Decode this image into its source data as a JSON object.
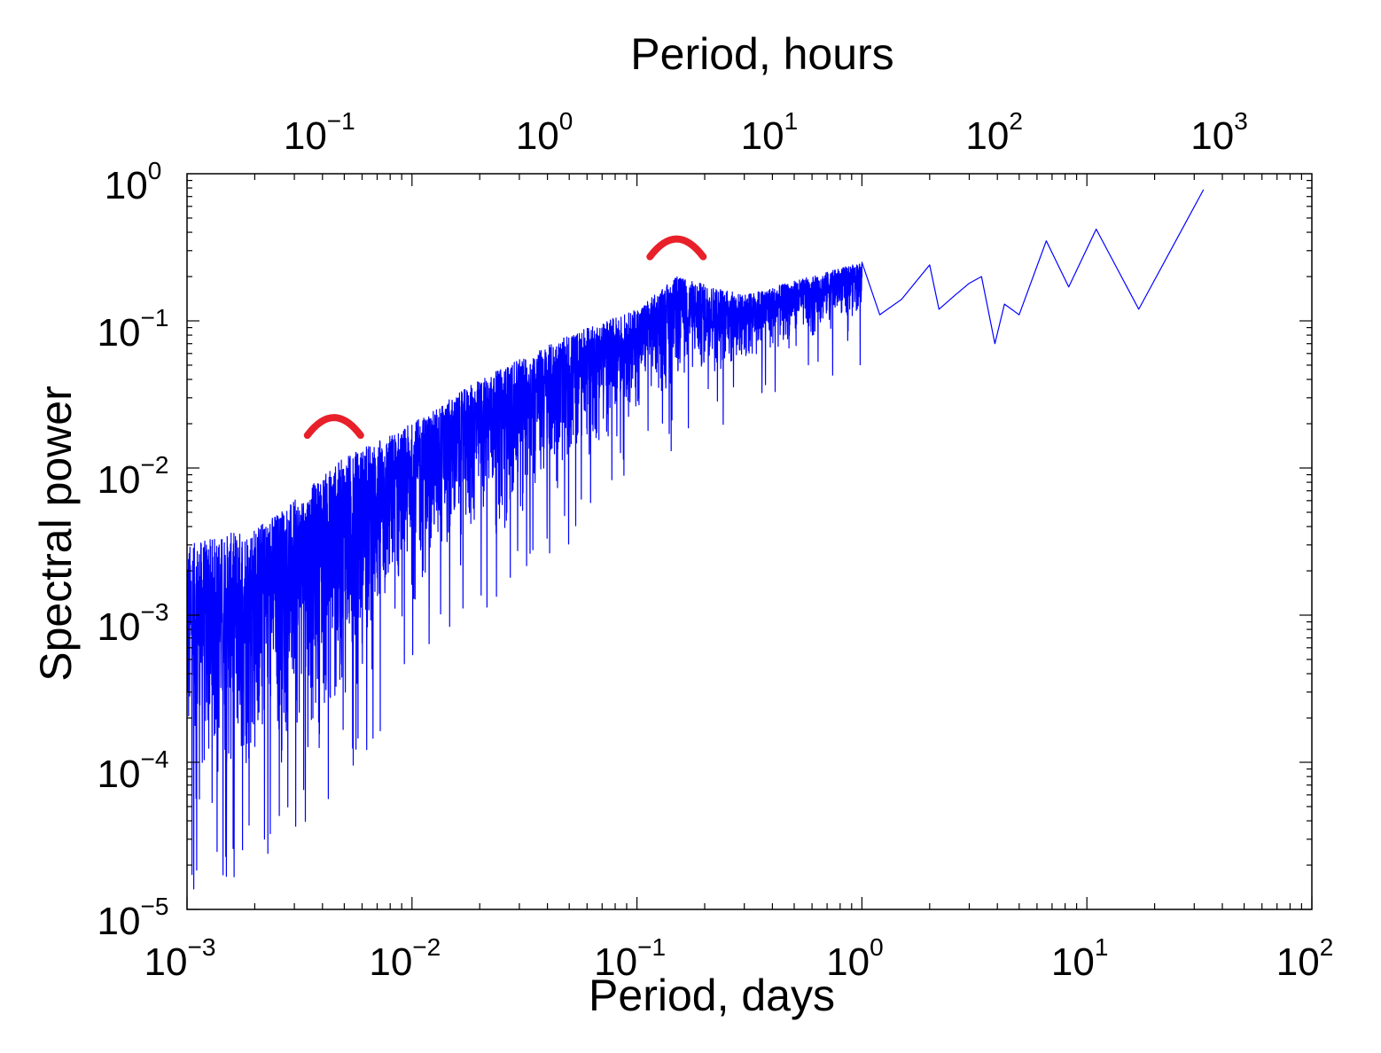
{
  "chart_data": {
    "type": "line",
    "title": "",
    "xlabel": "Period, days",
    "x2label": "Period, hours",
    "ylabel": "Spectral power",
    "xscale": "log",
    "yscale": "log",
    "xlim": [
      0.001,
      100
    ],
    "ylim": [
      1e-05,
      1
    ],
    "x2lim": [
      0.024,
      2400
    ],
    "grid": false,
    "colors": {
      "series": "#0000ff",
      "marker": "#e8202a",
      "axis": "#000000"
    },
    "x_ticks": [
      {
        "base": "10",
        "exp": "−3",
        "value": 0.001
      },
      {
        "base": "10",
        "exp": "−2",
        "value": 0.01
      },
      {
        "base": "10",
        "exp": "−1",
        "value": 0.1
      },
      {
        "base": "10",
        "exp": "0",
        "value": 1
      },
      {
        "base": "10",
        "exp": "1",
        "value": 10
      },
      {
        "base": "10",
        "exp": "2",
        "value": 100
      }
    ],
    "x2_ticks": [
      {
        "base": "10",
        "exp": "−1",
        "value": 0.1
      },
      {
        "base": "10",
        "exp": "0",
        "value": 1
      },
      {
        "base": "10",
        "exp": "1",
        "value": 10
      },
      {
        "base": "10",
        "exp": "2",
        "value": 100
      },
      {
        "base": "10",
        "exp": "3",
        "value": 1000
      }
    ],
    "y_ticks": [
      {
        "base": "10",
        "exp": "0",
        "value": 1
      },
      {
        "base": "10",
        "exp": "−1",
        "value": 0.1
      },
      {
        "base": "10",
        "exp": "−2",
        "value": 0.01
      },
      {
        "base": "10",
        "exp": "−3",
        "value": 0.001
      },
      {
        "base": "10",
        "exp": "−4",
        "value": 0.0001
      },
      {
        "base": "10",
        "exp": "−5",
        "value": 1e-05
      }
    ],
    "series": [
      {
        "name": "Spectral power",
        "envelope_upper": [
          [
            0.001,
            0.003
          ],
          [
            0.002,
            0.004
          ],
          [
            0.003,
            0.006
          ],
          [
            0.005,
            0.012
          ],
          [
            0.01,
            0.02
          ],
          [
            0.02,
            0.04
          ],
          [
            0.05,
            0.08
          ],
          [
            0.1,
            0.12
          ],
          [
            0.15,
            0.2
          ],
          [
            0.3,
            0.15
          ],
          [
            1.0,
            0.25
          ]
        ],
        "envelope_lower": [
          [
            0.001,
            2e-05
          ],
          [
            0.002,
            4e-05
          ],
          [
            0.003,
            6e-05
          ],
          [
            0.005,
            0.0001
          ],
          [
            0.01,
            0.0008
          ],
          [
            0.02,
            0.002
          ],
          [
            0.05,
            0.006
          ],
          [
            0.1,
            0.02
          ],
          [
            0.3,
            0.04
          ],
          [
            1.0,
            0.1
          ]
        ],
        "low_freq_points": [
          [
            1.0,
            0.25
          ],
          [
            1.2,
            0.11
          ],
          [
            1.5,
            0.14
          ],
          [
            2.0,
            0.24
          ],
          [
            2.2,
            0.12
          ],
          [
            2.6,
            0.15
          ],
          [
            3.0,
            0.18
          ],
          [
            3.4,
            0.2
          ],
          [
            3.9,
            0.07
          ],
          [
            4.3,
            0.13
          ],
          [
            5.0,
            0.11
          ],
          [
            6.6,
            0.35
          ],
          [
            8.3,
            0.17
          ],
          [
            11.0,
            0.42
          ],
          [
            17.0,
            0.12
          ],
          [
            33.0,
            0.78
          ]
        ]
      }
    ],
    "annotations": [
      {
        "type": "peak-marker",
        "x": 0.0045,
        "y": 0.022
      },
      {
        "type": "peak-marker",
        "x": 0.15,
        "y": 0.36
      }
    ]
  }
}
